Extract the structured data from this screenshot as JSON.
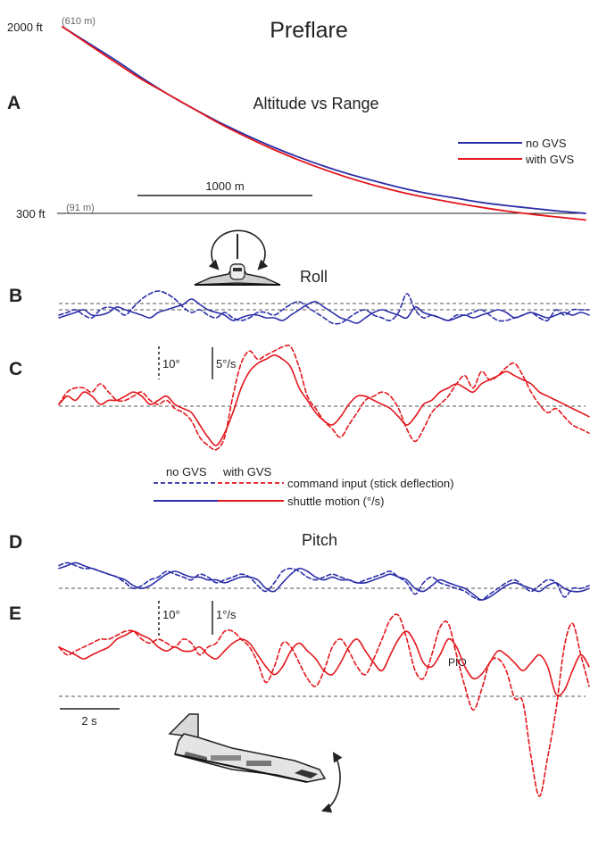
{
  "figure": {
    "title": "Preflare"
  },
  "colors": {
    "no_gvs": "#2b2fa8",
    "with_gvs": "#e3161b",
    "axis": "#222222",
    "reference": "#555555"
  },
  "icons": [
    "shuttle-front-view-icon",
    "roll-arrow-icon",
    "shuttle-side-view-icon",
    "pitch-arrow-icon"
  ],
  "chart_data": [
    {
      "panel": "A",
      "type": "line",
      "title": "Altitude vs Range",
      "y_top_label": "2000 ft",
      "y_top_metric": "(610 m)",
      "y_bottom_label": "300 ft",
      "y_bottom_metric": "(91 m)",
      "scale_bar_label": "1000 m",
      "ylim_ft": [
        300,
        2000
      ],
      "x": [
        0,
        0.05,
        0.1,
        0.15,
        0.2,
        0.25,
        0.3,
        0.35,
        0.4,
        0.45,
        0.5,
        0.55,
        0.6,
        0.65,
        0.7,
        0.75,
        0.8,
        0.85,
        0.9,
        0.95,
        1.0
      ],
      "series": [
        {
          "name": "no GVS",
          "values": [
            2000,
            1850,
            1700,
            1540,
            1390,
            1255,
            1130,
            1015,
            910,
            815,
            730,
            655,
            590,
            530,
            480,
            440,
            400,
            370,
            345,
            320,
            300
          ]
        },
        {
          "name": "with GVS",
          "values": [
            2000,
            1840,
            1680,
            1525,
            1390,
            1255,
            1120,
            1000,
            890,
            790,
            700,
            620,
            550,
            490,
            440,
            395,
            355,
            320,
            290,
            265,
            240
          ]
        }
      ]
    },
    {
      "panel": "B",
      "type": "line",
      "title": "Roll",
      "condition": "no GVS",
      "series": [
        {
          "name": "command input (stick deflection)",
          "style": "dashed",
          "values": [
            -1,
            0,
            1,
            -1,
            -2,
            1,
            2,
            1,
            -1,
            2,
            5,
            7,
            8,
            7,
            5,
            2,
            0,
            1,
            -1,
            -2,
            0,
            -2,
            -3,
            -2,
            0,
            0,
            -1,
            1,
            3,
            4,
            2,
            0,
            -2,
            -4,
            -4,
            -2,
            0,
            1,
            -1,
            -2,
            -3,
            0,
            7,
            1,
            -2,
            -1,
            -2,
            -3,
            -1,
            -1,
            0,
            1,
            -1,
            -3,
            -3,
            -2,
            -1,
            0,
            -2,
            -3,
            1,
            -1,
            1,
            1,
            1
          ]
        },
        {
          "name": "shuttle motion (°/s)",
          "style": "solid",
          "values": [
            -2,
            -1,
            0,
            1,
            -1,
            -1,
            0,
            2,
            1,
            0,
            -1,
            -2,
            0,
            1,
            2,
            3,
            5,
            3,
            1,
            0,
            -1,
            -3,
            -2,
            -1,
            -1,
            -2,
            -2,
            -3,
            -1,
            1,
            3,
            4,
            2,
            0,
            -2,
            -3,
            -4,
            -2,
            0,
            1,
            0,
            -1,
            -2,
            2,
            0,
            -1,
            -2,
            -3,
            -2,
            -1,
            -2,
            -1,
            0,
            1,
            0,
            -2,
            -1,
            0,
            -1,
            -2,
            -1,
            0,
            -1,
            0,
            -1
          ]
        }
      ]
    },
    {
      "panel": "C",
      "type": "line",
      "condition": "with GVS",
      "scale_labels": [
        "10°",
        "5°/s"
      ],
      "series": [
        {
          "name": "command input (stick deflection)",
          "style": "dashed",
          "values": [
            0,
            3,
            4,
            4,
            3,
            5,
            3,
            1,
            1,
            2,
            3,
            1,
            0,
            1,
            -1,
            -2,
            -4,
            -8,
            -10,
            -11,
            -8,
            2,
            10,
            13,
            11,
            12,
            13,
            14,
            14,
            9,
            2,
            -1,
            -4,
            -6,
            -8,
            -5,
            -2,
            1,
            2,
            3,
            2,
            -1,
            -6,
            -9,
            -6,
            -2,
            0,
            2,
            5,
            7,
            4,
            8,
            6,
            7,
            9,
            10,
            7,
            3,
            0,
            -2,
            -1,
            -3,
            -5,
            -6,
            -7
          ]
        },
        {
          "name": "shuttle motion (°/s)",
          "style": "solid",
          "values": [
            0,
            2,
            1,
            3,
            2,
            0,
            1,
            1,
            2,
            3,
            2,
            0,
            1,
            2,
            0,
            -1,
            -2,
            -5,
            -8,
            -10,
            -7,
            -2,
            4,
            8,
            10,
            11,
            12,
            11,
            9,
            4,
            1,
            -2,
            -4,
            -5,
            -3,
            0,
            2,
            2,
            1,
            0,
            -1,
            -3,
            -5,
            -3,
            0,
            1,
            3,
            4,
            5,
            4,
            3,
            5,
            6,
            7,
            8,
            7,
            6,
            5,
            3,
            2,
            1,
            0,
            -1,
            -2,
            -3
          ]
        }
      ]
    },
    {
      "panel": "D",
      "type": "line",
      "title": "Pitch",
      "condition": "no GVS",
      "series": [
        {
          "name": "command input (stick deflection)",
          "style": "dashed",
          "values": [
            12,
            13,
            12,
            11,
            11,
            10,
            9,
            8,
            6,
            4,
            5,
            7,
            8,
            10,
            9,
            8,
            7,
            9,
            8,
            6,
            7,
            8,
            9,
            8,
            5,
            3,
            6,
            10,
            11,
            10,
            8,
            7,
            8,
            9,
            8,
            7,
            6,
            7,
            8,
            9,
            10,
            8,
            6,
            2,
            6,
            8,
            6,
            5,
            4,
            3,
            1,
            0,
            2,
            4,
            6,
            7,
            5,
            3,
            5,
            7,
            6,
            1,
            4,
            4,
            5
          ]
        },
        {
          "name": "shuttle motion (°/s)",
          "style": "solid",
          "values": [
            11,
            12,
            13,
            12,
            11,
            10,
            9,
            8,
            7,
            5,
            4,
            5,
            7,
            9,
            10,
            9,
            8,
            8,
            7,
            7,
            6,
            7,
            8,
            8,
            7,
            4,
            3,
            6,
            9,
            11,
            10,
            8,
            7,
            8,
            7,
            7,
            6,
            6,
            7,
            8,
            9,
            8,
            7,
            4,
            3,
            5,
            7,
            6,
            5,
            4,
            2,
            0,
            1,
            3,
            5,
            6,
            5,
            4,
            3,
            5,
            6,
            4,
            3,
            3,
            4
          ]
        }
      ]
    },
    {
      "panel": "E",
      "type": "line",
      "condition": "with GVS",
      "scale_labels": [
        "10°",
        "1°/s"
      ],
      "time_bar_label": "2 s",
      "annotation": "PIO",
      "series": [
        {
          "name": "command input (stick deflection)",
          "style": "dashed",
          "values": [
            8,
            6,
            7,
            8,
            9,
            10,
            10,
            11,
            12,
            12,
            10,
            9,
            10,
            9,
            8,
            10,
            9,
            6,
            8,
            9,
            12,
            12,
            10,
            8,
            4,
            -1,
            3,
            9,
            8,
            4,
            0,
            -2,
            2,
            8,
            10,
            7,
            3,
            1,
            5,
            10,
            15,
            16,
            10,
            2,
            0,
            6,
            13,
            14,
            6,
            -2,
            -8,
            -3,
            4,
            5,
            2,
            -5,
            -6,
            -20,
            -30,
            -20,
            -8,
            8,
            14,
            6,
            -2
          ]
        },
        {
          "name": "shuttle motion (°/s)",
          "style": "solid",
          "values": [
            8,
            7,
            6,
            5,
            6,
            7,
            8,
            10,
            11,
            12,
            11,
            10,
            8,
            7,
            8,
            7,
            7,
            8,
            6,
            5,
            7,
            9,
            10,
            9,
            6,
            3,
            1,
            3,
            7,
            9,
            7,
            5,
            2,
            1,
            4,
            8,
            10,
            7,
            4,
            2,
            6,
            10,
            12,
            9,
            4,
            3,
            6,
            10,
            8,
            3,
            0,
            1,
            4,
            7,
            6,
            4,
            2,
            4,
            6,
            3,
            -4,
            -3,
            2,
            6,
            3
          ]
        }
      ]
    }
  ],
  "legend": {
    "header_no_gvs": "no GVS",
    "header_with_gvs": "with GVS",
    "command_label": "command input (stick deflection)",
    "motion_label": "shuttle motion (°/s)"
  }
}
